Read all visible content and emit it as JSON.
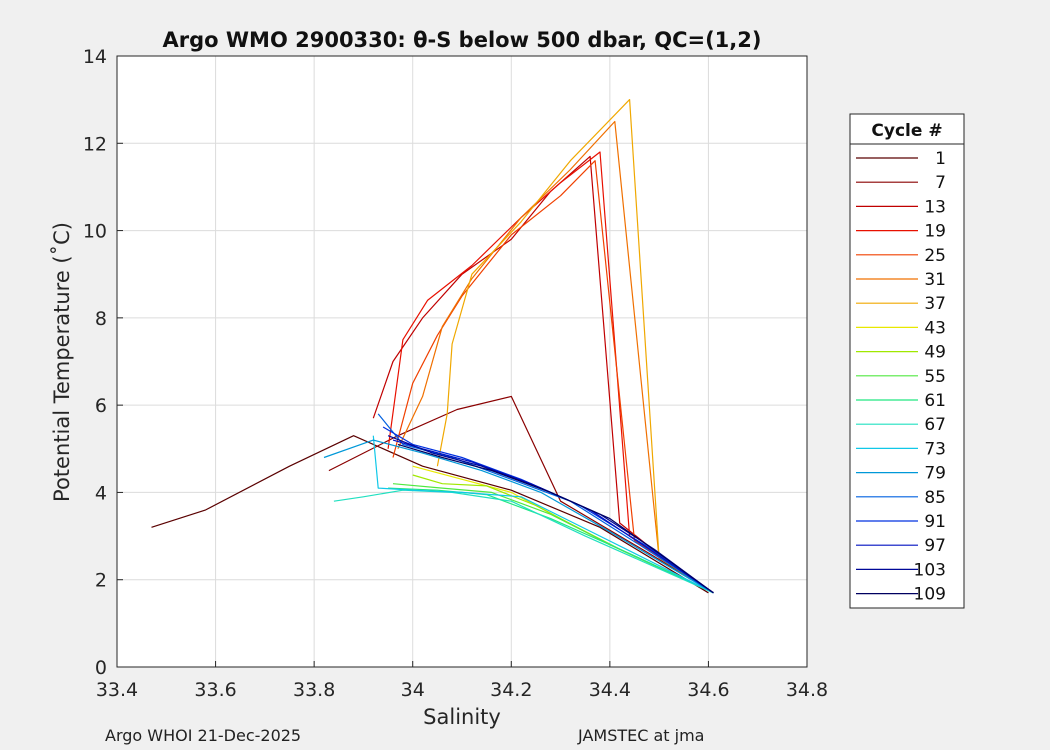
{
  "chart_data": {
    "type": "line",
    "title": "Argo WMO 2900330: θ-S below 500 dbar,  QC=(1,2)",
    "xlabel": "Salinity",
    "ylabel": "Potential Temperature (˚C)",
    "xlim": [
      33.4,
      34.8
    ],
    "ylim": [
      0,
      14
    ],
    "x_ticks": [
      33.4,
      33.6,
      33.8,
      34,
      34.2,
      34.4,
      34.6,
      34.8
    ],
    "x_tick_labels": [
      "33.4",
      "33.6",
      "33.8",
      "34",
      "34.2",
      "34.4",
      "34.6",
      "34.8"
    ],
    "y_ticks": [
      0,
      2,
      4,
      6,
      8,
      10,
      12,
      14
    ],
    "y_tick_labels": [
      "0",
      "2",
      "4",
      "6",
      "8",
      "10",
      "12",
      "14"
    ],
    "grid": true,
    "legend": {
      "title": "Cycle #",
      "placement": "right",
      "entries": [
        {
          "label": "1",
          "color": "#5a0000"
        },
        {
          "label": "7",
          "color": "#8a0000"
        },
        {
          "label": "13",
          "color": "#c00000"
        },
        {
          "label": "19",
          "color": "#e81000"
        },
        {
          "label": "25",
          "color": "#f04000"
        },
        {
          "label": "31",
          "color": "#f07000"
        },
        {
          "label": "37",
          "color": "#f0a800"
        },
        {
          "label": "43",
          "color": "#e8e800"
        },
        {
          "label": "49",
          "color": "#a0e800"
        },
        {
          "label": "55",
          "color": "#50e840"
        },
        {
          "label": "61",
          "color": "#20e880"
        },
        {
          "label": "67",
          "color": "#20e0c0"
        },
        {
          "label": "73",
          "color": "#10c8e8"
        },
        {
          "label": "79",
          "color": "#0098d8"
        },
        {
          "label": "85",
          "color": "#0060e0"
        },
        {
          "label": "91",
          "color": "#0030e0"
        },
        {
          "label": "97",
          "color": "#0010c0"
        },
        {
          "label": "103",
          "color": "#000898"
        },
        {
          "label": "109",
          "color": "#000060"
        }
      ]
    },
    "series": [
      {
        "name": "1",
        "color": "#5a0000",
        "x": [
          33.47,
          33.58,
          33.75,
          33.88,
          34.02,
          34.2,
          34.38,
          34.6
        ],
        "y": [
          3.2,
          3.6,
          4.6,
          5.3,
          4.6,
          4.05,
          3.2,
          1.7
        ]
      },
      {
        "name": "7",
        "color": "#8a0000",
        "x": [
          33.83,
          33.97,
          34.09,
          34.2,
          34.25,
          34.3,
          34.48,
          34.61
        ],
        "y": [
          4.5,
          5.3,
          5.9,
          6.2,
          5.0,
          3.8,
          2.6,
          1.7
        ]
      },
      {
        "name": "13",
        "color": "#c00000",
        "x": [
          33.92,
          33.96,
          34.02,
          34.1,
          34.2,
          34.28,
          34.36,
          34.42,
          34.52,
          34.61
        ],
        "y": [
          5.7,
          7.0,
          8.0,
          9.0,
          9.8,
          10.9,
          11.7,
          3.3,
          2.4,
          1.7
        ]
      },
      {
        "name": "19",
        "color": "#e81000",
        "x": [
          33.95,
          33.98,
          34.03,
          34.12,
          34.22,
          34.3,
          34.38,
          34.44,
          34.61
        ],
        "y": [
          5.0,
          7.5,
          8.4,
          9.2,
          10.3,
          11.1,
          11.8,
          3.0,
          1.7
        ]
      },
      {
        "name": "25",
        "color": "#f04000",
        "x": [
          33.96,
          34.0,
          34.05,
          34.1,
          34.2,
          34.3,
          34.37,
          34.45,
          34.61
        ],
        "y": [
          4.8,
          6.5,
          7.6,
          8.5,
          9.9,
          10.8,
          11.6,
          2.9,
          1.7
        ]
      },
      {
        "name": "31",
        "color": "#f07000",
        "x": [
          33.97,
          34.02,
          34.06,
          34.12,
          34.22,
          34.32,
          34.41,
          34.5,
          34.61
        ],
        "y": [
          5.0,
          6.2,
          7.8,
          8.9,
          10.3,
          11.4,
          12.5,
          2.5,
          1.7
        ]
      },
      {
        "name": "37",
        "color": "#f0a800",
        "x": [
          34.05,
          34.07,
          34.08,
          34.12,
          34.22,
          34.32,
          34.44,
          34.5,
          34.61
        ],
        "y": [
          4.6,
          5.8,
          7.4,
          9.0,
          10.2,
          11.6,
          13.0,
          2.5,
          1.7
        ]
      },
      {
        "name": "43",
        "color": "#e8e800",
        "x": [
          34.0,
          34.1,
          34.2,
          34.3,
          34.42,
          34.61
        ],
        "y": [
          4.6,
          4.3,
          4.0,
          3.4,
          2.7,
          1.7
        ]
      },
      {
        "name": "49",
        "color": "#a0e800",
        "x": [
          34.0,
          34.06,
          34.15,
          34.25,
          34.4,
          34.61
        ],
        "y": [
          4.4,
          4.2,
          4.15,
          3.7,
          2.8,
          1.7
        ]
      },
      {
        "name": "55",
        "color": "#50e840",
        "x": [
          33.96,
          34.06,
          34.16,
          34.28,
          34.42,
          34.61
        ],
        "y": [
          4.2,
          4.1,
          4.0,
          3.5,
          2.7,
          1.7
        ]
      },
      {
        "name": "61",
        "color": "#20e880",
        "x": [
          33.95,
          34.05,
          34.15,
          34.28,
          34.44,
          34.61
        ],
        "y": [
          4.1,
          4.05,
          3.95,
          3.4,
          2.6,
          1.7
        ]
      },
      {
        "name": "67",
        "color": "#20e0c0",
        "x": [
          33.84,
          33.9,
          33.98,
          34.08,
          34.2,
          34.35,
          34.61
        ],
        "y": [
          3.8,
          3.9,
          4.05,
          4.0,
          3.8,
          3.0,
          1.7
        ]
      },
      {
        "name": "73",
        "color": "#10c8e8",
        "x": [
          33.92,
          33.93,
          34.0,
          34.1,
          34.22,
          34.38,
          34.61
        ],
        "y": [
          5.3,
          4.1,
          4.05,
          4.0,
          3.9,
          3.0,
          1.7
        ]
      },
      {
        "name": "79",
        "color": "#0098d8",
        "x": [
          33.82,
          33.92,
          34.02,
          34.14,
          34.26,
          34.4,
          34.61
        ],
        "y": [
          4.8,
          5.2,
          4.9,
          4.5,
          4.0,
          3.1,
          1.7
        ]
      },
      {
        "name": "85",
        "color": "#0060e0",
        "x": [
          33.93,
          33.98,
          34.08,
          34.2,
          34.32,
          34.46,
          34.61
        ],
        "y": [
          5.8,
          5.1,
          4.8,
          4.3,
          3.8,
          2.8,
          1.7
        ]
      },
      {
        "name": "91",
        "color": "#0030e0",
        "x": [
          33.94,
          34.0,
          34.1,
          34.22,
          34.34,
          34.47,
          34.61
        ],
        "y": [
          5.5,
          5.1,
          4.8,
          4.3,
          3.7,
          2.8,
          1.7
        ]
      },
      {
        "name": "97",
        "color": "#0010c0",
        "x": [
          33.96,
          34.02,
          34.12,
          34.24,
          34.36,
          34.48,
          34.61
        ],
        "y": [
          5.2,
          5.0,
          4.7,
          4.2,
          3.6,
          2.7,
          1.7
        ]
      },
      {
        "name": "103",
        "color": "#000898",
        "x": [
          33.95,
          34.04,
          34.14,
          34.26,
          34.38,
          34.49,
          34.61
        ],
        "y": [
          5.3,
          4.9,
          4.6,
          4.1,
          3.5,
          2.7,
          1.7
        ]
      },
      {
        "name": "109",
        "color": "#000060",
        "x": [
          33.97,
          34.06,
          34.16,
          34.28,
          34.4,
          34.5,
          34.61
        ],
        "y": [
          5.1,
          4.8,
          4.5,
          4.0,
          3.4,
          2.6,
          1.7
        ]
      }
    ]
  },
  "footer": {
    "left": "Argo WHOI 21-Dec-2025",
    "right": "JAMSTEC at jma"
  }
}
